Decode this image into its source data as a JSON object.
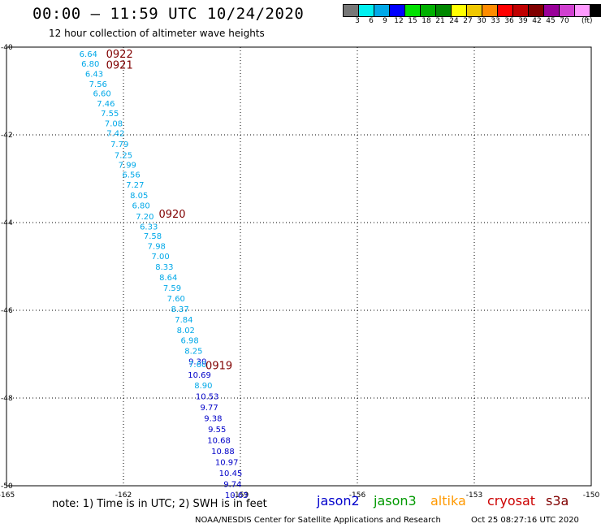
{
  "header": {
    "title": "00:00 – 11:59 UTC 10/24/2020",
    "subtitle": "12 hour collection of altimeter wave heights"
  },
  "legend": {
    "colors": [
      "#777777",
      "#00f0f0",
      "#00a8e8",
      "#0000ff",
      "#00e000",
      "#00b000",
      "#008800",
      "#ffff00",
      "#f0c800",
      "#ff8c00",
      "#ff0000",
      "#c00000",
      "#800000",
      "#990099",
      "#d040d0",
      "#ff99ff",
      "#000000"
    ],
    "labels": [
      "3",
      "6",
      "9",
      "12",
      "15",
      "18",
      "21",
      "24",
      "27",
      "30",
      "33",
      "36",
      "39",
      "42",
      "45",
      "70"
    ],
    "unit": "(ft)"
  },
  "footer": {
    "note": "note: 1) Time is in UTC; 2) SWH is in feet",
    "satellites": [
      {
        "name": "jason2",
        "color": "#0000cc"
      },
      {
        "name": "jason3",
        "color": "#009900"
      },
      {
        "name": "altika",
        "color": "#ff9900"
      },
      {
        "name": "cryosat",
        "color": "#cc0000"
      },
      {
        "name": "s3a",
        "color": "#800000"
      }
    ],
    "credit": "NOAA/NESDIS Center for Satellite Applications and Research",
    "timestamp": "Oct 25 08:27:16 UTC 2020"
  },
  "chart_data": {
    "type": "scatter",
    "xlim": [
      -165,
      -150
    ],
    "ylim": [
      -50,
      -40
    ],
    "x_ticks": [
      "-165",
      "-162",
      "-159",
      "-156",
      "-153",
      "-150"
    ],
    "y_ticks": [
      "-40",
      "-42",
      "-44",
      "-46",
      "-48",
      "-50"
    ],
    "grid": true,
    "series": [
      {
        "name": "jason2",
        "points": [
          {
            "x": -162.9,
            "y": -40.15,
            "label": "6.64"
          },
          {
            "x": -162.85,
            "y": -40.37,
            "label": "6.80"
          },
          {
            "x": -162.75,
            "y": -40.6,
            "label": "6.43"
          },
          {
            "x": -162.65,
            "y": -40.83,
            "label": "7.56"
          },
          {
            "x": -162.55,
            "y": -41.05,
            "label": "6.60"
          },
          {
            "x": -162.45,
            "y": -41.28,
            "label": "7.46"
          },
          {
            "x": -162.35,
            "y": -41.5,
            "label": "7.55"
          },
          {
            "x": -162.25,
            "y": -41.73,
            "label": "7.08"
          },
          {
            "x": -162.2,
            "y": -41.95,
            "label": "7.42"
          },
          {
            "x": -162.1,
            "y": -42.2,
            "label": "7.79"
          },
          {
            "x": -162.0,
            "y": -42.45,
            "label": "7.25"
          },
          {
            "x": -161.9,
            "y": -42.68,
            "label": "7.99"
          },
          {
            "x": -161.8,
            "y": -42.9,
            "label": "6.56"
          },
          {
            "x": -161.7,
            "y": -43.13,
            "label": "7.27"
          },
          {
            "x": -161.6,
            "y": -43.37,
            "label": "8.05"
          },
          {
            "x": -161.55,
            "y": -43.6,
            "label": "6.80"
          },
          {
            "x": -161.45,
            "y": -43.85,
            "label": "7.20"
          },
          {
            "x": -161.35,
            "y": -44.08,
            "label": "6.33"
          },
          {
            "x": -161.25,
            "y": -44.3,
            "label": "7.58"
          },
          {
            "x": -161.15,
            "y": -44.53,
            "label": "7.98"
          },
          {
            "x": -161.05,
            "y": -44.76,
            "label": "7.00"
          },
          {
            "x": -160.95,
            "y": -45.0,
            "label": "8.33"
          },
          {
            "x": -160.85,
            "y": -45.24,
            "label": "8.64"
          },
          {
            "x": -160.75,
            "y": -45.48,
            "label": "7.59"
          },
          {
            "x": -160.65,
            "y": -45.72,
            "label": "7.60"
          },
          {
            "x": -160.55,
            "y": -45.96,
            "label": "8.37"
          },
          {
            "x": -160.45,
            "y": -46.2,
            "label": "7.84"
          },
          {
            "x": -160.4,
            "y": -46.44,
            "label": "8.02"
          },
          {
            "x": -160.3,
            "y": -46.68,
            "label": "6.98"
          },
          {
            "x": -160.2,
            "y": -46.92,
            "label": "8.25"
          },
          {
            "x": -160.1,
            "y": -47.16,
            "label": "9.30"
          },
          {
            "x": -160.1,
            "y": -47.22,
            "label": "7.60"
          },
          {
            "x": -160.05,
            "y": -47.46,
            "label": "10.69"
          },
          {
            "x": -159.95,
            "y": -47.7,
            "label": "8.90"
          },
          {
            "x": -159.85,
            "y": -47.95,
            "label": "10.53"
          },
          {
            "x": -159.8,
            "y": -48.2,
            "label": "9.77"
          },
          {
            "x": -159.7,
            "y": -48.45,
            "label": "9.38"
          },
          {
            "x": -159.6,
            "y": -48.7,
            "label": "9.55"
          },
          {
            "x": -159.55,
            "y": -48.95,
            "label": "10.68"
          },
          {
            "x": -159.45,
            "y": -49.2,
            "label": "10.88"
          },
          {
            "x": -159.35,
            "y": -49.45,
            "label": "10.97"
          },
          {
            "x": -159.25,
            "y": -49.7,
            "label": "10.45"
          },
          {
            "x": -159.2,
            "y": -49.95,
            "label": "9.74"
          },
          {
            "x": -159.1,
            "y": -50.2,
            "label": "10.63"
          }
        ]
      }
    ],
    "time_labels": [
      {
        "x": -162.1,
        "y": -40.15,
        "label": "0922"
      },
      {
        "x": -162.1,
        "y": -40.4,
        "label": "0921"
      },
      {
        "x": -160.75,
        "y": -43.8,
        "label": "0920"
      },
      {
        "x": -159.55,
        "y": -47.25,
        "label": "0919"
      }
    ]
  }
}
